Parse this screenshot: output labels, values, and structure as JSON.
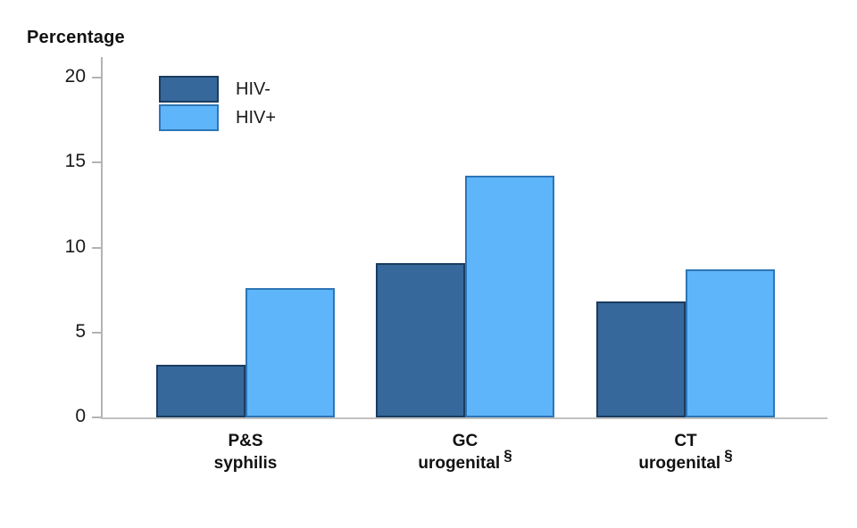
{
  "figure": {
    "axis_title": "Percentage"
  },
  "legend": {
    "entries": [
      {
        "label": "HIV-",
        "fill": "#36689B",
        "border": "#1B3C5F"
      },
      {
        "label": "HIV+",
        "fill": "#5EB5FA",
        "border": "#2E75B6"
      }
    ]
  },
  "colors": {
    "hiv_negative_fill": "#36689B",
    "hiv_negative_border": "#1B3C5F",
    "hiv_positive_fill": "#5EB5FA",
    "hiv_positive_border": "#2E75B6",
    "axis_line": "#B3B3B3",
    "text": "#111111"
  },
  "chart_data": {
    "type": "bar",
    "title": "",
    "ylabel": "Percentage",
    "xlabel": "",
    "ylim": [
      0,
      20
    ],
    "yticks": [
      0,
      5,
      10,
      15,
      20
    ],
    "grid": false,
    "legend_position": "top-left-inside",
    "categories": [
      "P&S syphilis",
      "GC urogenital §",
      "CT urogenital §"
    ],
    "category_labels": [
      {
        "line1": "P&S",
        "line2": "syphilis",
        "superscript": ""
      },
      {
        "line1": "GC",
        "line2": "urogenital",
        "superscript": "§"
      },
      {
        "line1": "CT",
        "line2": "urogenital",
        "superscript": "§"
      }
    ],
    "series": [
      {
        "name": "HIV-",
        "color": "#36689B",
        "values": [
          3.1,
          9.1,
          6.8
        ]
      },
      {
        "name": "HIV+",
        "color": "#5EB5FA",
        "values": [
          7.6,
          14.2,
          8.7
        ]
      }
    ]
  }
}
